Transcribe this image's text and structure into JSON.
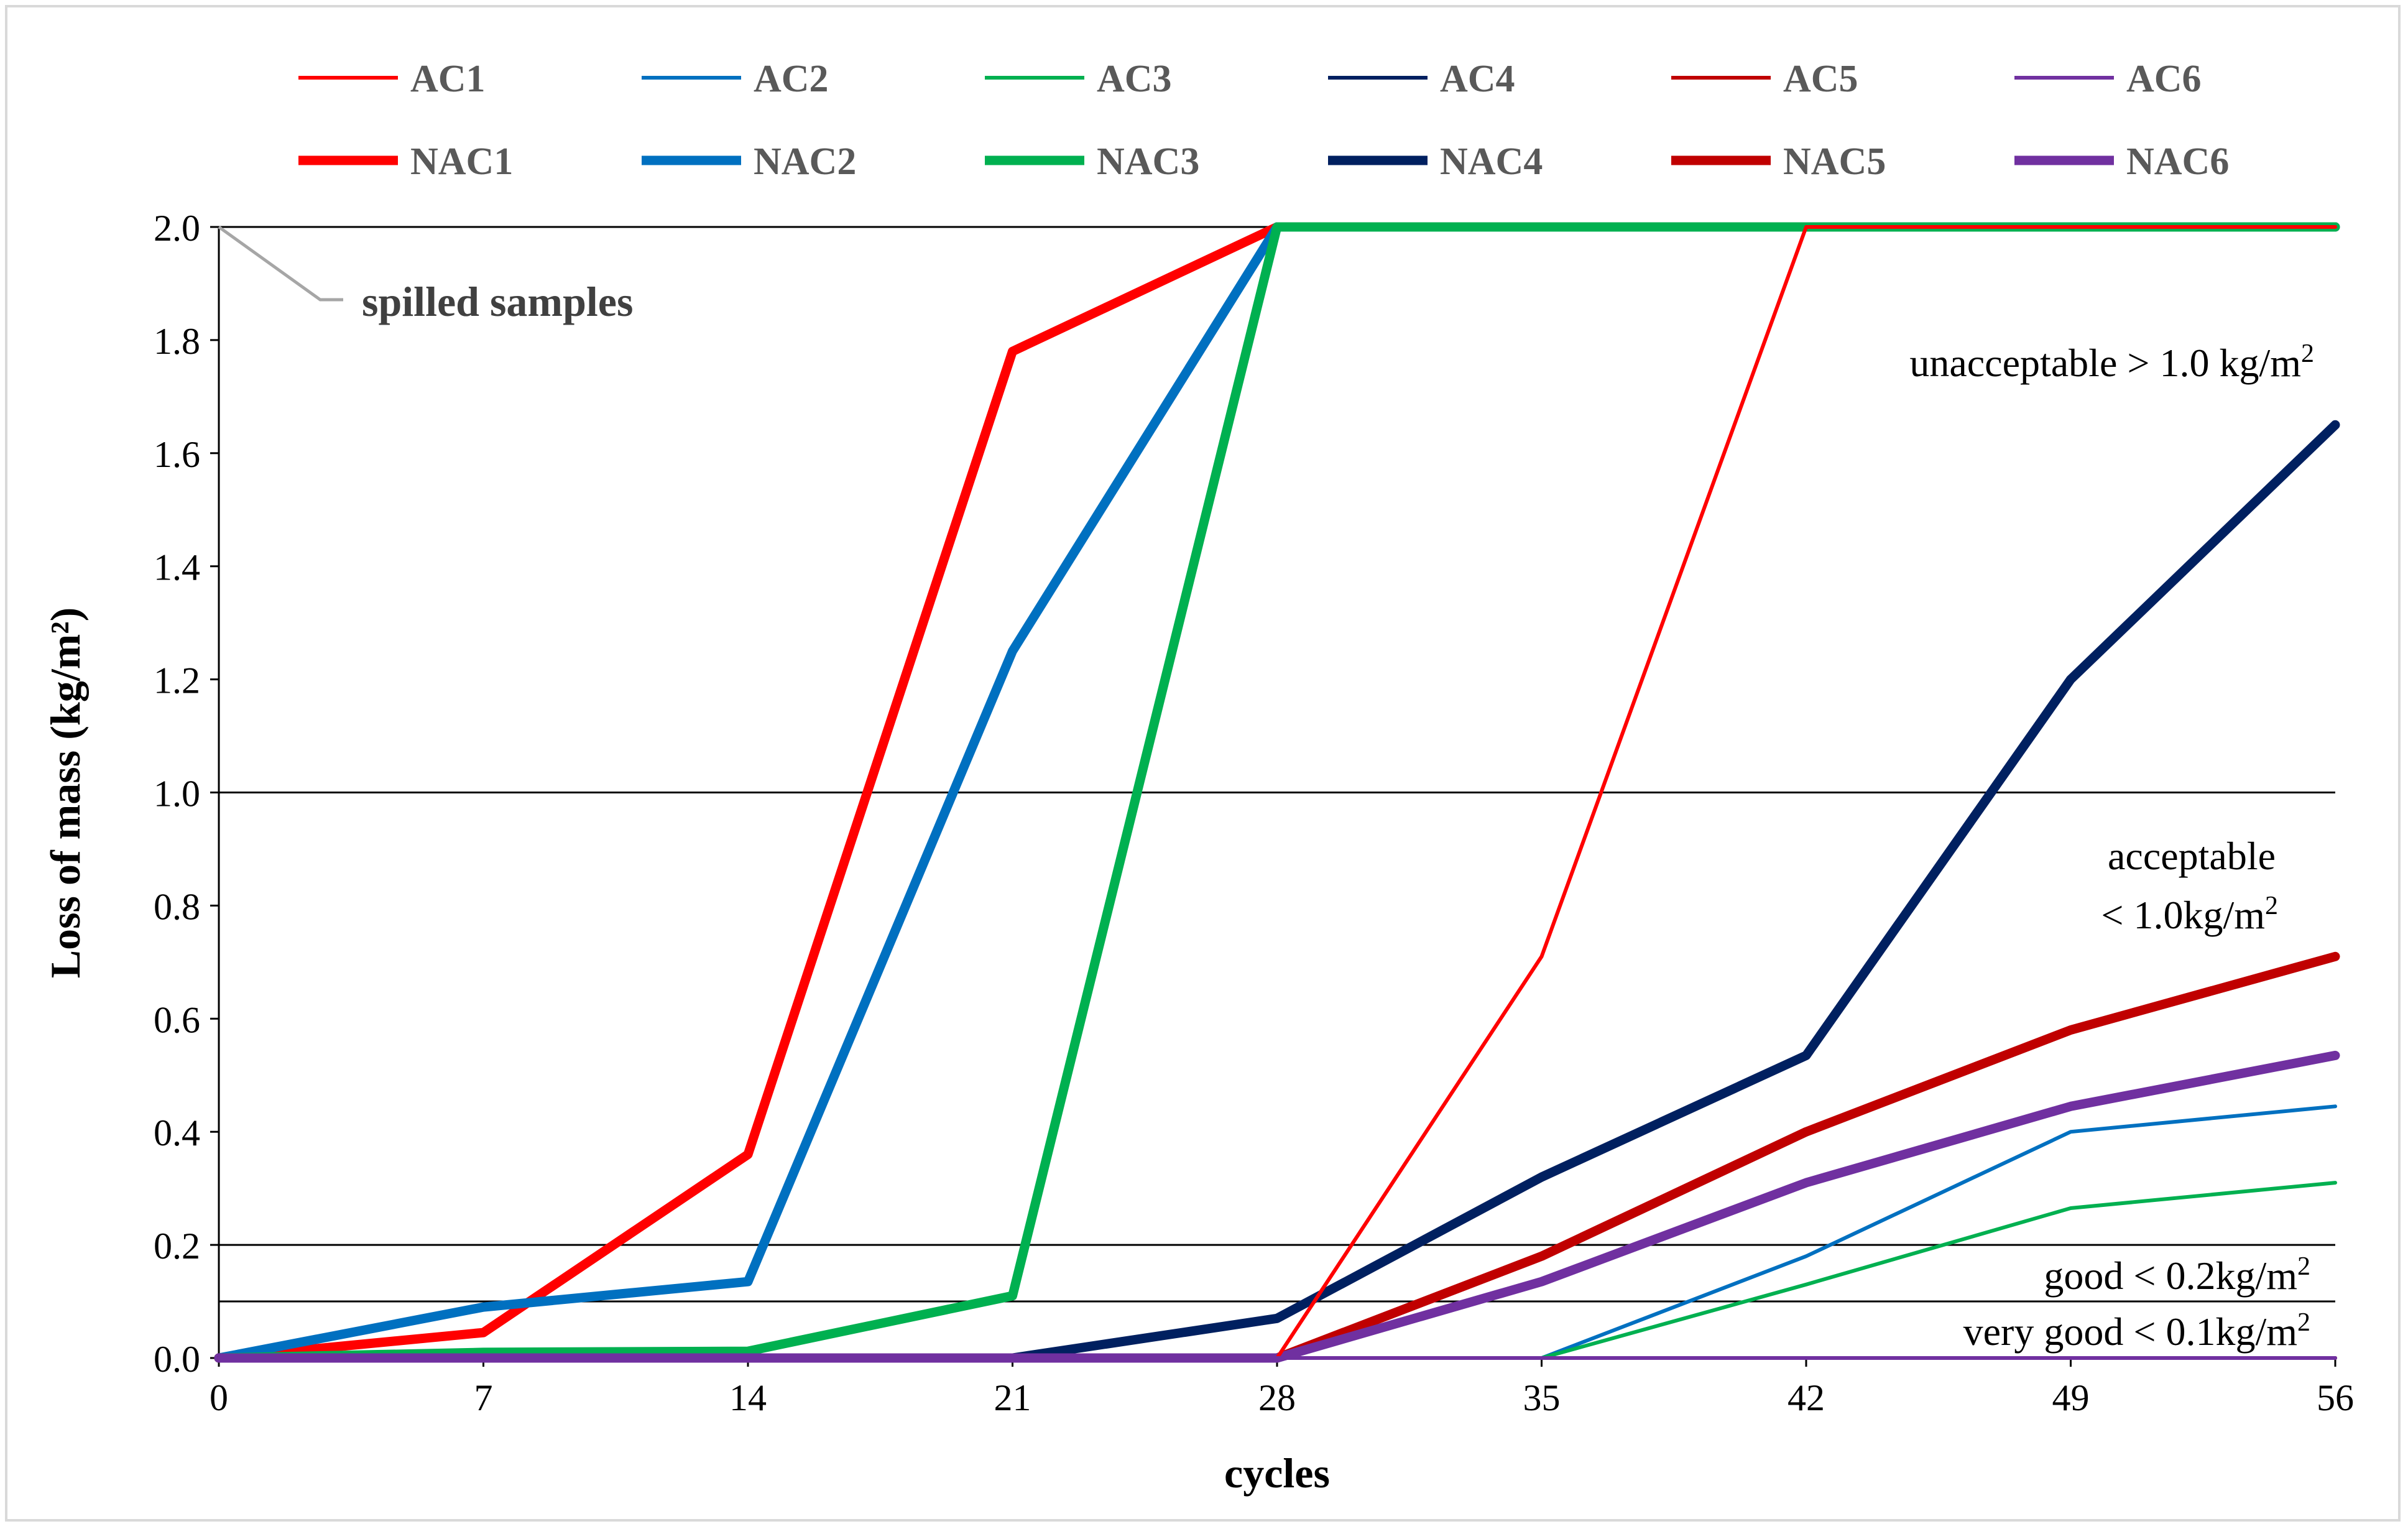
{
  "chart_data": {
    "type": "line",
    "title": "",
    "xlabel": "cycles",
    "ylabel": "Loss of mass (kg/m²)",
    "xlim": [
      0,
      56
    ],
    "ylim": [
      0,
      2.0
    ],
    "xticks": [
      0,
      7,
      14,
      21,
      28,
      35,
      42,
      49,
      56
    ],
    "xtick_labels": [
      "0",
      "7",
      "14",
      "21",
      "28",
      "35",
      "42",
      "49",
      "56"
    ],
    "yticks": [
      0,
      0.2,
      0.4,
      0.6,
      0.8,
      1.0,
      1.2,
      1.4,
      1.6,
      1.8,
      2.0
    ],
    "ytick_labels": [
      "0.0",
      "0.2",
      "0.4",
      "0.6",
      "0.8",
      "1.0",
      "1.2",
      "1.4",
      "1.6",
      "1.8",
      "2.0"
    ],
    "grid": "horizontal lines at 0.1, 0.2, 1.0 and 2.0",
    "reference_lines": [
      0.1,
      0.2,
      1.0,
      2.0
    ],
    "legend_position": "top",
    "x": [
      0,
      7,
      14,
      21,
      28,
      35,
      42,
      49,
      56
    ],
    "series": [
      {
        "name": "AC1",
        "color": "#ff0000",
        "style": "thin",
        "values": [
          0,
          0,
          0,
          0,
          0,
          0.71,
          2.0,
          2.0,
          2.0
        ]
      },
      {
        "name": "AC2",
        "color": "#0070c0",
        "style": "thin",
        "values": [
          0,
          0,
          0,
          0,
          0,
          0,
          0.18,
          0.4,
          0.445
        ]
      },
      {
        "name": "AC3",
        "color": "#00b050",
        "style": "thin",
        "values": [
          0,
          0,
          0,
          0,
          0,
          0,
          0.13,
          0.265,
          0.31
        ]
      },
      {
        "name": "AC4",
        "color": "#002060",
        "style": "thin",
        "values": [
          0,
          0,
          0,
          0,
          0,
          0,
          0,
          0,
          0
        ]
      },
      {
        "name": "AC5",
        "color": "#c00000",
        "style": "thin",
        "values": [
          0,
          0,
          0,
          0,
          0,
          0,
          0,
          0,
          0
        ]
      },
      {
        "name": "AC6",
        "color": "#7030a0",
        "style": "thin",
        "values": [
          0,
          0,
          0,
          0,
          0,
          0,
          0,
          0,
          0
        ]
      },
      {
        "name": "NAC1",
        "color": "#ff0000",
        "style": "thick",
        "values": [
          0,
          0.045,
          0.36,
          1.78,
          2.0,
          2.0,
          2.0,
          2.0,
          2.0
        ]
      },
      {
        "name": "NAC2",
        "color": "#0070c0",
        "style": "thick",
        "values": [
          0,
          0.09,
          0.135,
          1.25,
          2.0,
          2.0,
          2.0,
          2.0,
          2.0
        ]
      },
      {
        "name": "NAC3",
        "color": "#00b050",
        "style": "thick",
        "values": [
          0,
          0.01,
          0.012,
          0.11,
          2.0,
          2.0,
          2.0,
          2.0,
          2.0
        ]
      },
      {
        "name": "NAC4",
        "color": "#002060",
        "style": "thick",
        "values": [
          0,
          0,
          0,
          0,
          0.07,
          0.32,
          0.535,
          1.2,
          1.65
        ]
      },
      {
        "name": "NAC5",
        "color": "#c00000",
        "style": "thick",
        "values": [
          0,
          0,
          0,
          0,
          0,
          0.18,
          0.4,
          0.58,
          0.71
        ]
      },
      {
        "name": "NAC6",
        "color": "#7030a0",
        "style": "thick",
        "values": [
          0,
          0,
          0,
          0,
          0,
          0.135,
          0.31,
          0.445,
          0.535
        ]
      }
    ],
    "annotations": [
      {
        "id": "spilled",
        "text": "spilled samples",
        "points_to": {
          "x": 0,
          "y": 2.0
        }
      },
      {
        "id": "unacceptable",
        "text": "unacceptable > 1.0 kg/m",
        "sup": "2"
      },
      {
        "id": "acceptable_1",
        "text": "acceptable"
      },
      {
        "id": "acceptable_2",
        "text": "< 1.0kg/m",
        "sup": "2"
      },
      {
        "id": "good",
        "text": "good < 0.2kg/m",
        "sup": "2"
      },
      {
        "id": "very_good",
        "text": "very good < 0.1kg/m",
        "sup": "2"
      }
    ]
  }
}
